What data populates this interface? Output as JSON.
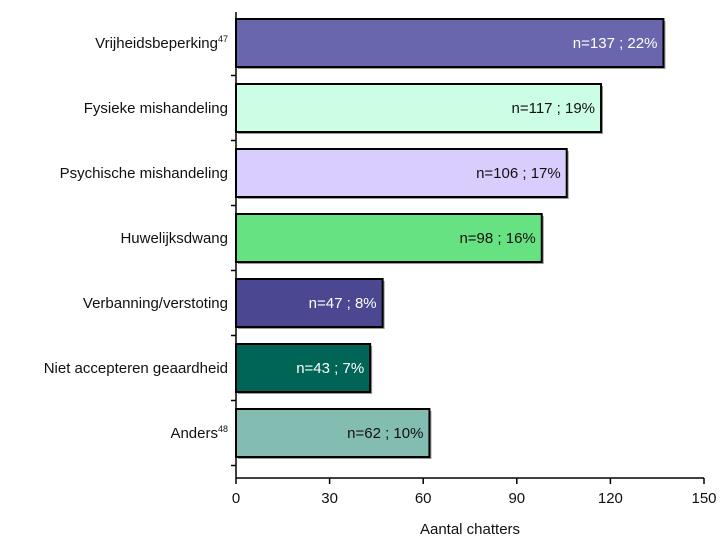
{
  "chart_data": {
    "type": "bar",
    "orientation": "horizontal",
    "title": "",
    "xlabel": "Aantal chatters",
    "ylabel": "",
    "xlim": [
      0,
      150
    ],
    "xticks": [
      0,
      30,
      60,
      90,
      120,
      150
    ],
    "grid": false,
    "categories": [
      {
        "label": "Vrijheidsbeperking",
        "sup": "47"
      },
      {
        "label": "Fysieke mishandeling",
        "sup": ""
      },
      {
        "label": "Psychische mishandeling",
        "sup": ""
      },
      {
        "label": "Huwelijksdwang",
        "sup": ""
      },
      {
        "label": "Verbanning/verstoting",
        "sup": ""
      },
      {
        "label": "Niet accepteren geaardheid",
        "sup": ""
      },
      {
        "label": "Anders",
        "sup": "48"
      }
    ],
    "values": [
      137,
      117,
      106,
      98,
      47,
      43,
      62
    ],
    "data_labels": [
      "n=137 ; 22%",
      "n=117 ; 19%",
      "n=106 ; 17%",
      "n=98 ; 16%",
      "n=47 ; 8%",
      "n=43 ; 7%",
      "n=62 ; 10%"
    ],
    "colors": [
      "#6a66ad",
      "#ccfee6",
      "#d9cdfd",
      "#67e283",
      "#4c4791",
      "#006557",
      "#83bcb0"
    ],
    "label_colors": [
      "#ffffff",
      "#111111",
      "#111111",
      "#111111",
      "#ffffff",
      "#ffffff",
      "#111111"
    ]
  }
}
